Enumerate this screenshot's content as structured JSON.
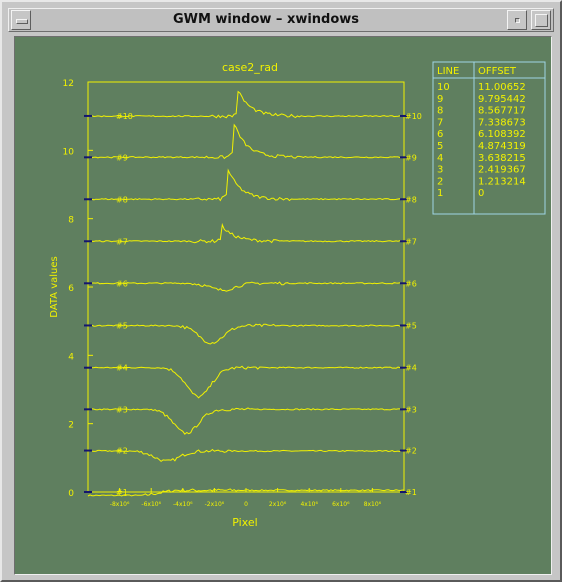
{
  "window": {
    "title": "GWM window – xwindows"
  },
  "plot": {
    "title": "case2_rad",
    "xlabel": "Pixel",
    "ylabel": "DATA values",
    "y_ticks": [
      "0",
      "2",
      "4",
      "6",
      "8",
      "10",
      "12"
    ],
    "x_ticks": [
      "-8x10⁶",
      "-6x10⁶",
      "-4x10⁶",
      "-2x10⁶",
      "0",
      "2x10⁶",
      "4x10⁶",
      "6x10⁶",
      "8x10⁶"
    ],
    "colors": {
      "axes": "#f2f200",
      "trace": "#f2f200",
      "marker": "#14146e",
      "background": "#5f7f5f"
    }
  },
  "legend_table": {
    "headers": [
      "LINE",
      "OFFSET"
    ],
    "rows": [
      [
        "10",
        "11.00652"
      ],
      [
        "9",
        "9.795442"
      ],
      [
        "8",
        "8.567717"
      ],
      [
        "7",
        "7.338673"
      ],
      [
        "6",
        "6.108392"
      ],
      [
        "5",
        "4.874319"
      ],
      [
        "4",
        "3.638215"
      ],
      [
        "3",
        "2.419367"
      ],
      [
        "2",
        "1.213214"
      ],
      [
        "1",
        "0"
      ]
    ]
  },
  "chart_data": {
    "type": "line",
    "title": "case2_rad",
    "xlabel": "Pixel",
    "ylabel": "DATA values",
    "ylim": [
      0,
      12
    ],
    "xlim": [
      -10000000,
      10000000
    ],
    "x_tick_labels": [
      "-8x10⁶",
      "-6x10⁶",
      "-4x10⁶",
      "-2x10⁶",
      "0",
      "2x10⁶",
      "4x10⁶",
      "6x10⁶",
      "8x10⁶"
    ],
    "y_tick_labels": [
      "0",
      "2",
      "4",
      "6",
      "8",
      "10",
      "12"
    ],
    "series": [
      {
        "name": "#1",
        "offset": 0,
        "baseline": 0.05,
        "feature": {
          "x": -4500000,
          "amp": -0.15,
          "kind": "step"
        }
      },
      {
        "name": "#2",
        "offset": 1.213214,
        "baseline": 1.2,
        "feature": {
          "x": -5000000,
          "amp": -0.3,
          "kind": "dip"
        }
      },
      {
        "name": "#3",
        "offset": 2.419367,
        "baseline": 2.42,
        "feature": {
          "x": -3800000,
          "amp": -0.7,
          "kind": "dip"
        }
      },
      {
        "name": "#4",
        "offset": 3.638215,
        "baseline": 3.64,
        "feature": {
          "x": -3000000,
          "amp": -0.85,
          "kind": "dip"
        }
      },
      {
        "name": "#5",
        "offset": 4.874319,
        "baseline": 4.87,
        "feature": {
          "x": -2200000,
          "amp": -0.5,
          "kind": "dip"
        }
      },
      {
        "name": "#6",
        "offset": 6.108392,
        "baseline": 6.11,
        "feature": {
          "x": -1500000,
          "amp": -0.2,
          "kind": "dip"
        }
      },
      {
        "name": "#7",
        "offset": 7.338673,
        "baseline": 7.34,
        "feature": {
          "x": -1600000,
          "amp": 0.5,
          "kind": "peak"
        }
      },
      {
        "name": "#8",
        "offset": 8.567717,
        "baseline": 8.57,
        "feature": {
          "x": -1200000,
          "amp": 0.95,
          "kind": "peak"
        }
      },
      {
        "name": "#9",
        "offset": 9.795442,
        "baseline": 9.8,
        "feature": {
          "x": -800000,
          "amp": 1.05,
          "kind": "peak"
        }
      },
      {
        "name": "#10",
        "offset": 11.00652,
        "baseline": 11.0,
        "feature": {
          "x": -500000,
          "amp": 0.75,
          "kind": "peak"
        }
      }
    ]
  }
}
